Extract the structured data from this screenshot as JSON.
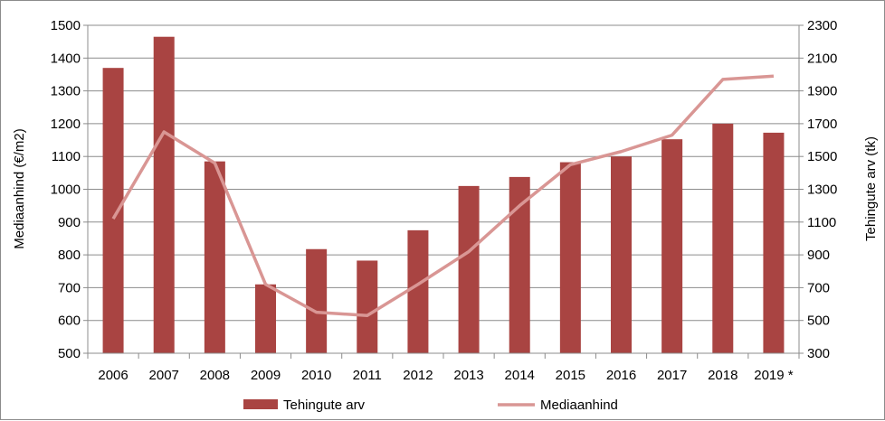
{
  "chart_data": {
    "type": "bar",
    "categories": [
      "2006",
      "2007",
      "2008",
      "2009",
      "2010",
      "2011",
      "2012",
      "2013",
      "2014",
      "2015",
      "2016",
      "2017",
      "2018",
      "2019 *"
    ],
    "series": [
      {
        "name": "Tehingute arv",
        "type": "bar",
        "axis": "right",
        "color": "#a94442",
        "values": [
          2040,
          2230,
          1470,
          720,
          935,
          865,
          1050,
          1320,
          1375,
          1465,
          1500,
          1605,
          1700,
          1645
        ]
      },
      {
        "name": "Mediaanhind",
        "type": "line",
        "axis": "left",
        "color": "#d99694",
        "values": [
          910,
          1175,
          1080,
          710,
          625,
          615,
          710,
          810,
          950,
          1075,
          1115,
          1165,
          1335,
          1345
        ]
      }
    ],
    "ylabel": "Mediaanhind (€/m2)",
    "y2label": "Tehingute arv (tk)",
    "ylim": [
      500,
      1500
    ],
    "y2lim": [
      300,
      2300
    ],
    "yticks": [
      "500",
      "600",
      "700",
      "800",
      "900",
      "1000",
      "1100",
      "1200",
      "1300",
      "1400",
      "1500"
    ],
    "y2ticks": [
      "300",
      "500",
      "700",
      "900",
      "1100",
      "1300",
      "1500",
      "1700",
      "1900",
      "2100",
      "2300"
    ],
    "grid": true,
    "legend": "bottom"
  }
}
